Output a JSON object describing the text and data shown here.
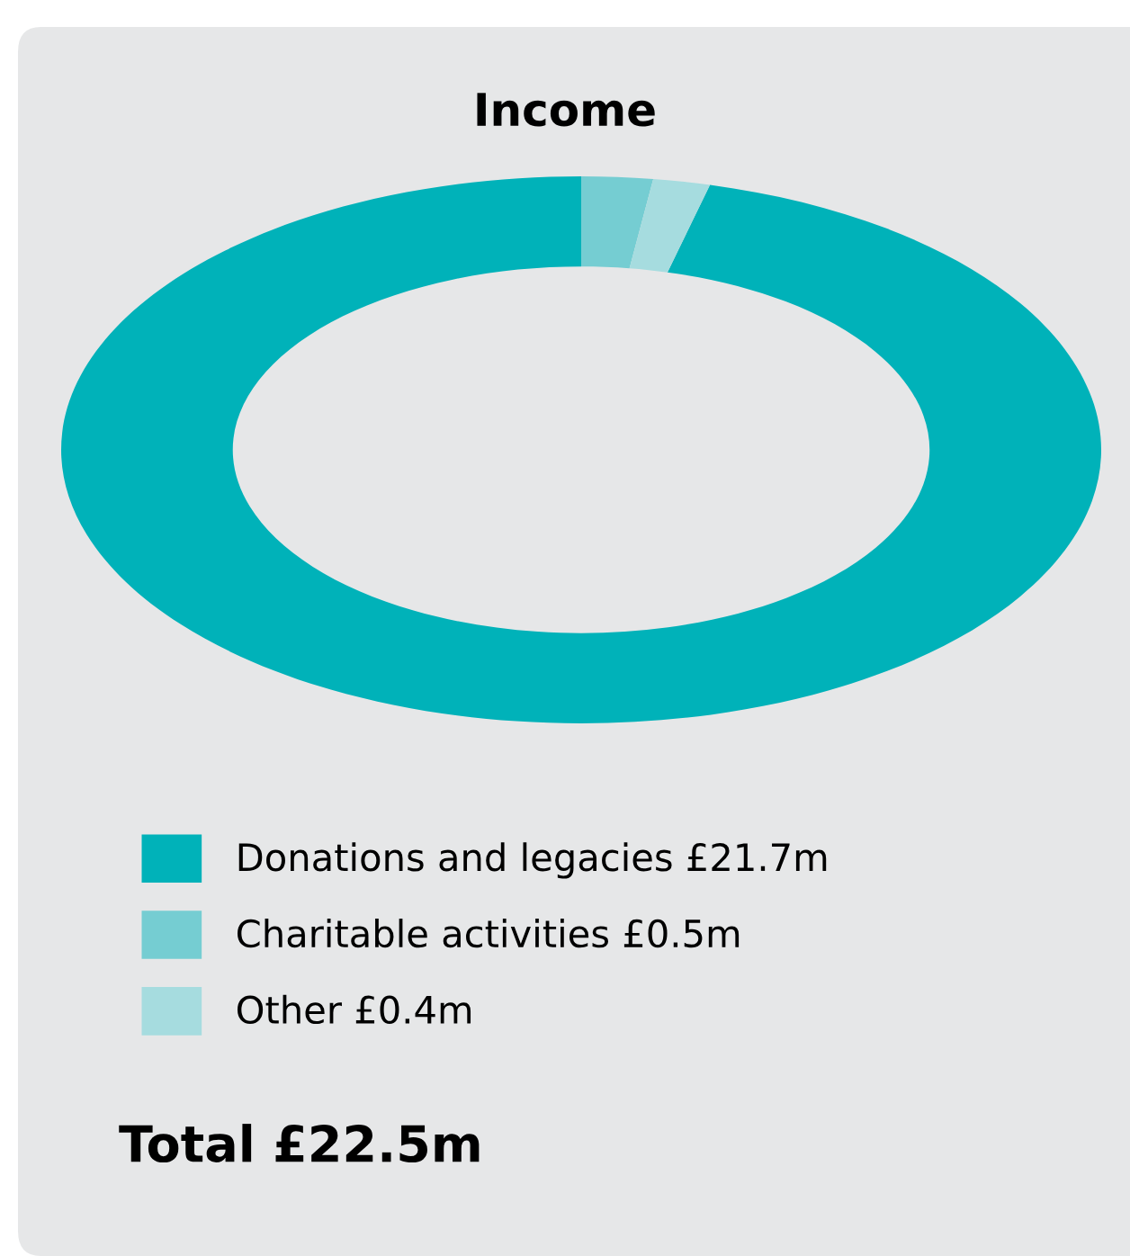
{
  "chart_data": {
    "type": "donut",
    "title": "Income",
    "categories": [
      "Donations and legacies",
      "Charitable activities",
      "Other"
    ],
    "values": [
      21.7,
      0.5,
      0.4
    ],
    "value_labels": [
      "£21.7m",
      "£0.5m",
      "£0.4m"
    ],
    "colors": [
      "#00b2b9",
      "#75cdd2",
      "#a6dcdf"
    ],
    "legend": "bottom",
    "annotations": [
      "Total £22.5m"
    ]
  }
}
